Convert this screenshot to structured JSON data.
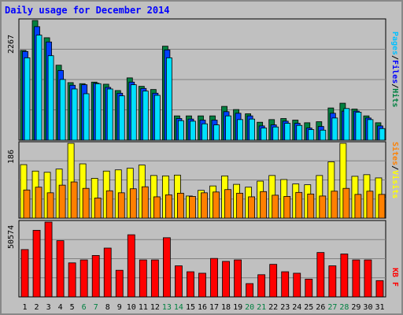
{
  "title": "Daily usage for December 2014",
  "colors": {
    "background": "#c0c0c0",
    "title": "#0000ff",
    "hits": "#008040",
    "files": "#0040ff",
    "pages": "#00e0ff",
    "visits": "#ffff00",
    "sites": "#ff8000",
    "kbytes": "#ff0000",
    "weekend": "#008040"
  },
  "chart_data": [
    {
      "type": "bar",
      "panel": "hits-files-pages",
      "categories": [
        "1",
        "2",
        "3",
        "4",
        "5",
        "6",
        "7",
        "8",
        "9",
        "10",
        "11",
        "12",
        "13",
        "14",
        "15",
        "16",
        "17",
        "18",
        "19",
        "20",
        "21",
        "22",
        "23",
        "24",
        "25",
        "26",
        "27",
        "28",
        "29",
        "30",
        "31"
      ],
      "weekend_days": [
        "6",
        "7",
        "13",
        "14",
        "20",
        "21",
        "27",
        "28"
      ],
      "ymax_label": "2267",
      "ylim": [
        0,
        2267
      ],
      "series": [
        {
          "name": "Hits",
          "values": [
            1700,
            2267,
            1940,
            1420,
            1090,
            1070,
            1100,
            1060,
            940,
            1180,
            1020,
            960,
            1780,
            460,
            460,
            460,
            460,
            640,
            580,
            500,
            340,
            390,
            410,
            380,
            330,
            350,
            610,
            700,
            590,
            460,
            330
          ]
        },
        {
          "name": "Files",
          "values": [
            1680,
            2150,
            1860,
            1320,
            1040,
            1050,
            1080,
            1000,
            890,
            1100,
            980,
            890,
            1710,
            410,
            400,
            380,
            380,
            540,
            510,
            460,
            270,
            290,
            360,
            320,
            230,
            260,
            510,
            550,
            550,
            420,
            270
          ]
        },
        {
          "name": "Pages",
          "values": [
            1560,
            1990,
            1600,
            1150,
            970,
            880,
            1070,
            970,
            840,
            1050,
            930,
            850,
            1560,
            370,
            360,
            310,
            290,
            460,
            390,
            400,
            230,
            250,
            320,
            280,
            200,
            190,
            420,
            600,
            530,
            390,
            220
          ]
        }
      ],
      "legend": [
        "Pages",
        "Files",
        "Hits"
      ]
    },
    {
      "type": "bar",
      "panel": "visits-sites",
      "categories": [
        "1",
        "2",
        "3",
        "4",
        "5",
        "6",
        "7",
        "8",
        "9",
        "10",
        "11",
        "12",
        "13",
        "14",
        "15",
        "16",
        "17",
        "18",
        "19",
        "20",
        "21",
        "22",
        "23",
        "24",
        "25",
        "26",
        "27",
        "28",
        "29",
        "30",
        "31"
      ],
      "ymax_label": "186",
      "ylim": [
        0,
        186
      ],
      "series": [
        {
          "name": "Visits",
          "values": [
            133,
            117,
            114,
            122,
            186,
            135,
            99,
            117,
            120,
            124,
            132,
            106,
            105,
            107,
            55,
            69,
            80,
            105,
            84,
            77,
            92,
            106,
            96,
            85,
            83,
            106,
            140,
            186,
            104,
            108,
            100
          ]
        },
        {
          "name": "Sites",
          "values": [
            70,
            77,
            63,
            82,
            90,
            74,
            50,
            68,
            63,
            73,
            78,
            53,
            58,
            62,
            54,
            63,
            65,
            71,
            62,
            53,
            66,
            57,
            54,
            64,
            60,
            55,
            67,
            74,
            59,
            67,
            59
          ]
        }
      ],
      "legend": [
        "Sites",
        "Visits"
      ]
    },
    {
      "type": "bar",
      "panel": "kbytes",
      "categories": [
        "1",
        "2",
        "3",
        "4",
        "5",
        "6",
        "7",
        "8",
        "9",
        "10",
        "11",
        "12",
        "13",
        "14",
        "15",
        "16",
        "17",
        "18",
        "19",
        "20",
        "21",
        "22",
        "23",
        "24",
        "25",
        "26",
        "27",
        "28",
        "29",
        "30",
        "31"
      ],
      "ymax_label": "50574",
      "ylim": [
        0,
        50574
      ],
      "series": [
        {
          "name": "KB F",
          "values": [
            32000,
            45000,
            50574,
            38000,
            23000,
            25000,
            28000,
            33000,
            18000,
            42000,
            25000,
            25000,
            40000,
            21000,
            17000,
            16000,
            26000,
            24000,
            25000,
            9000,
            15000,
            22000,
            17000,
            16000,
            12000,
            30000,
            21000,
            29000,
            25000,
            25000,
            11000
          ]
        }
      ],
      "legend": [
        "KB F"
      ]
    }
  ]
}
